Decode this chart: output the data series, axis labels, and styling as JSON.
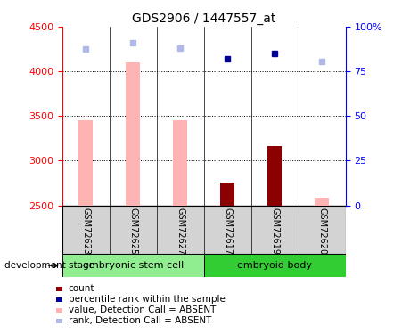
{
  "title": "GDS2906 / 1447557_at",
  "samples": [
    "GSM72623",
    "GSM72625",
    "GSM72627",
    "GSM72617",
    "GSM72619",
    "GSM72620"
  ],
  "bar_baseline": 2500,
  "ylim": [
    2500,
    4500
  ],
  "left_ticks": [
    2500,
    3000,
    3500,
    4000,
    4500
  ],
  "dotted_lines": [
    3000,
    3500,
    4000
  ],
  "absent_bar_values": [
    3450,
    4100,
    3450,
    null,
    null,
    2590
  ],
  "present_bar_values": [
    null,
    null,
    null,
    2760,
    3160,
    null
  ],
  "absent_scatter_values": [
    4250,
    4320,
    4260,
    null,
    null,
    4110
  ],
  "present_scatter_values": [
    null,
    null,
    null,
    4140,
    4200,
    null
  ],
  "absent_bar_color": "#ffb3b3",
  "present_bar_color": "#8b0000",
  "absent_scatter_color": "#b0b8e8",
  "present_scatter_color": "#000099",
  "group1_color": "#90ee90",
  "group2_color": "#32cd32",
  "sample_bg_color": "#d3d3d3",
  "title_fontsize": 10,
  "tick_fontsize": 8,
  "sample_fontsize": 7,
  "group_fontsize": 8,
  "legend_fontsize": 7.5,
  "right_tick_values": [
    2500,
    3000,
    3500,
    4000,
    4500
  ],
  "right_tick_labels": [
    "0",
    "25",
    "50",
    "75",
    "100%"
  ]
}
